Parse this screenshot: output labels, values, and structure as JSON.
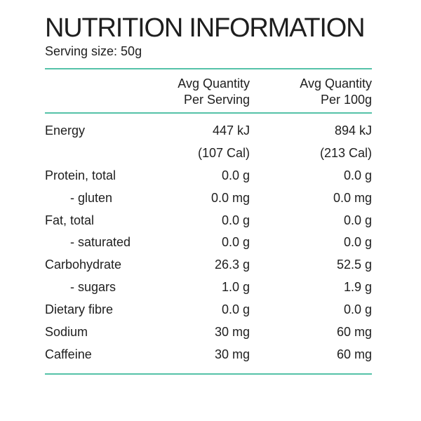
{
  "title": "NUTRITION INFORMATION",
  "serving_size": "Serving size: 50g",
  "columns": {
    "per_serving": [
      "Avg Quantity",
      "Per Serving"
    ],
    "per_100g": [
      "Avg Quantity",
      "Per 100g"
    ]
  },
  "rows": [
    {
      "label": "Energy",
      "per_serving": "447 kJ",
      "per_100g": "894 kJ"
    },
    {
      "label": "",
      "per_serving": "(107 Cal)",
      "per_100g": "(213 Cal)"
    },
    {
      "label": "Protein, total",
      "per_serving": "0.0 g",
      "per_100g": "0.0 g"
    },
    {
      "label": "- gluten",
      "per_serving": "0.0 mg",
      "per_100g": "0.0 mg"
    },
    {
      "label": "Fat, total",
      "per_serving": "0.0 g",
      "per_100g": "0.0 g"
    },
    {
      "label": "- saturated",
      "per_serving": "0.0 g",
      "per_100g": "0.0 g"
    },
    {
      "label": "Carbohydrate",
      "per_serving": "26.3 g",
      "per_100g": "52.5 g"
    },
    {
      "label": "- sugars",
      "per_serving": "1.0 g",
      "per_100g": "1.9 g"
    },
    {
      "label": "Dietary fibre",
      "per_serving": "0.0 g",
      "per_100g": "0.0 g"
    },
    {
      "label": "Sodium",
      "per_serving": "30 mg",
      "per_100g": "60 mg"
    },
    {
      "label": "Caffeine",
      "per_serving": "30 mg",
      "per_100g": "60 mg"
    }
  ],
  "colors": {
    "rule": "#55c2a8",
    "text": "#1e1e1e"
  }
}
